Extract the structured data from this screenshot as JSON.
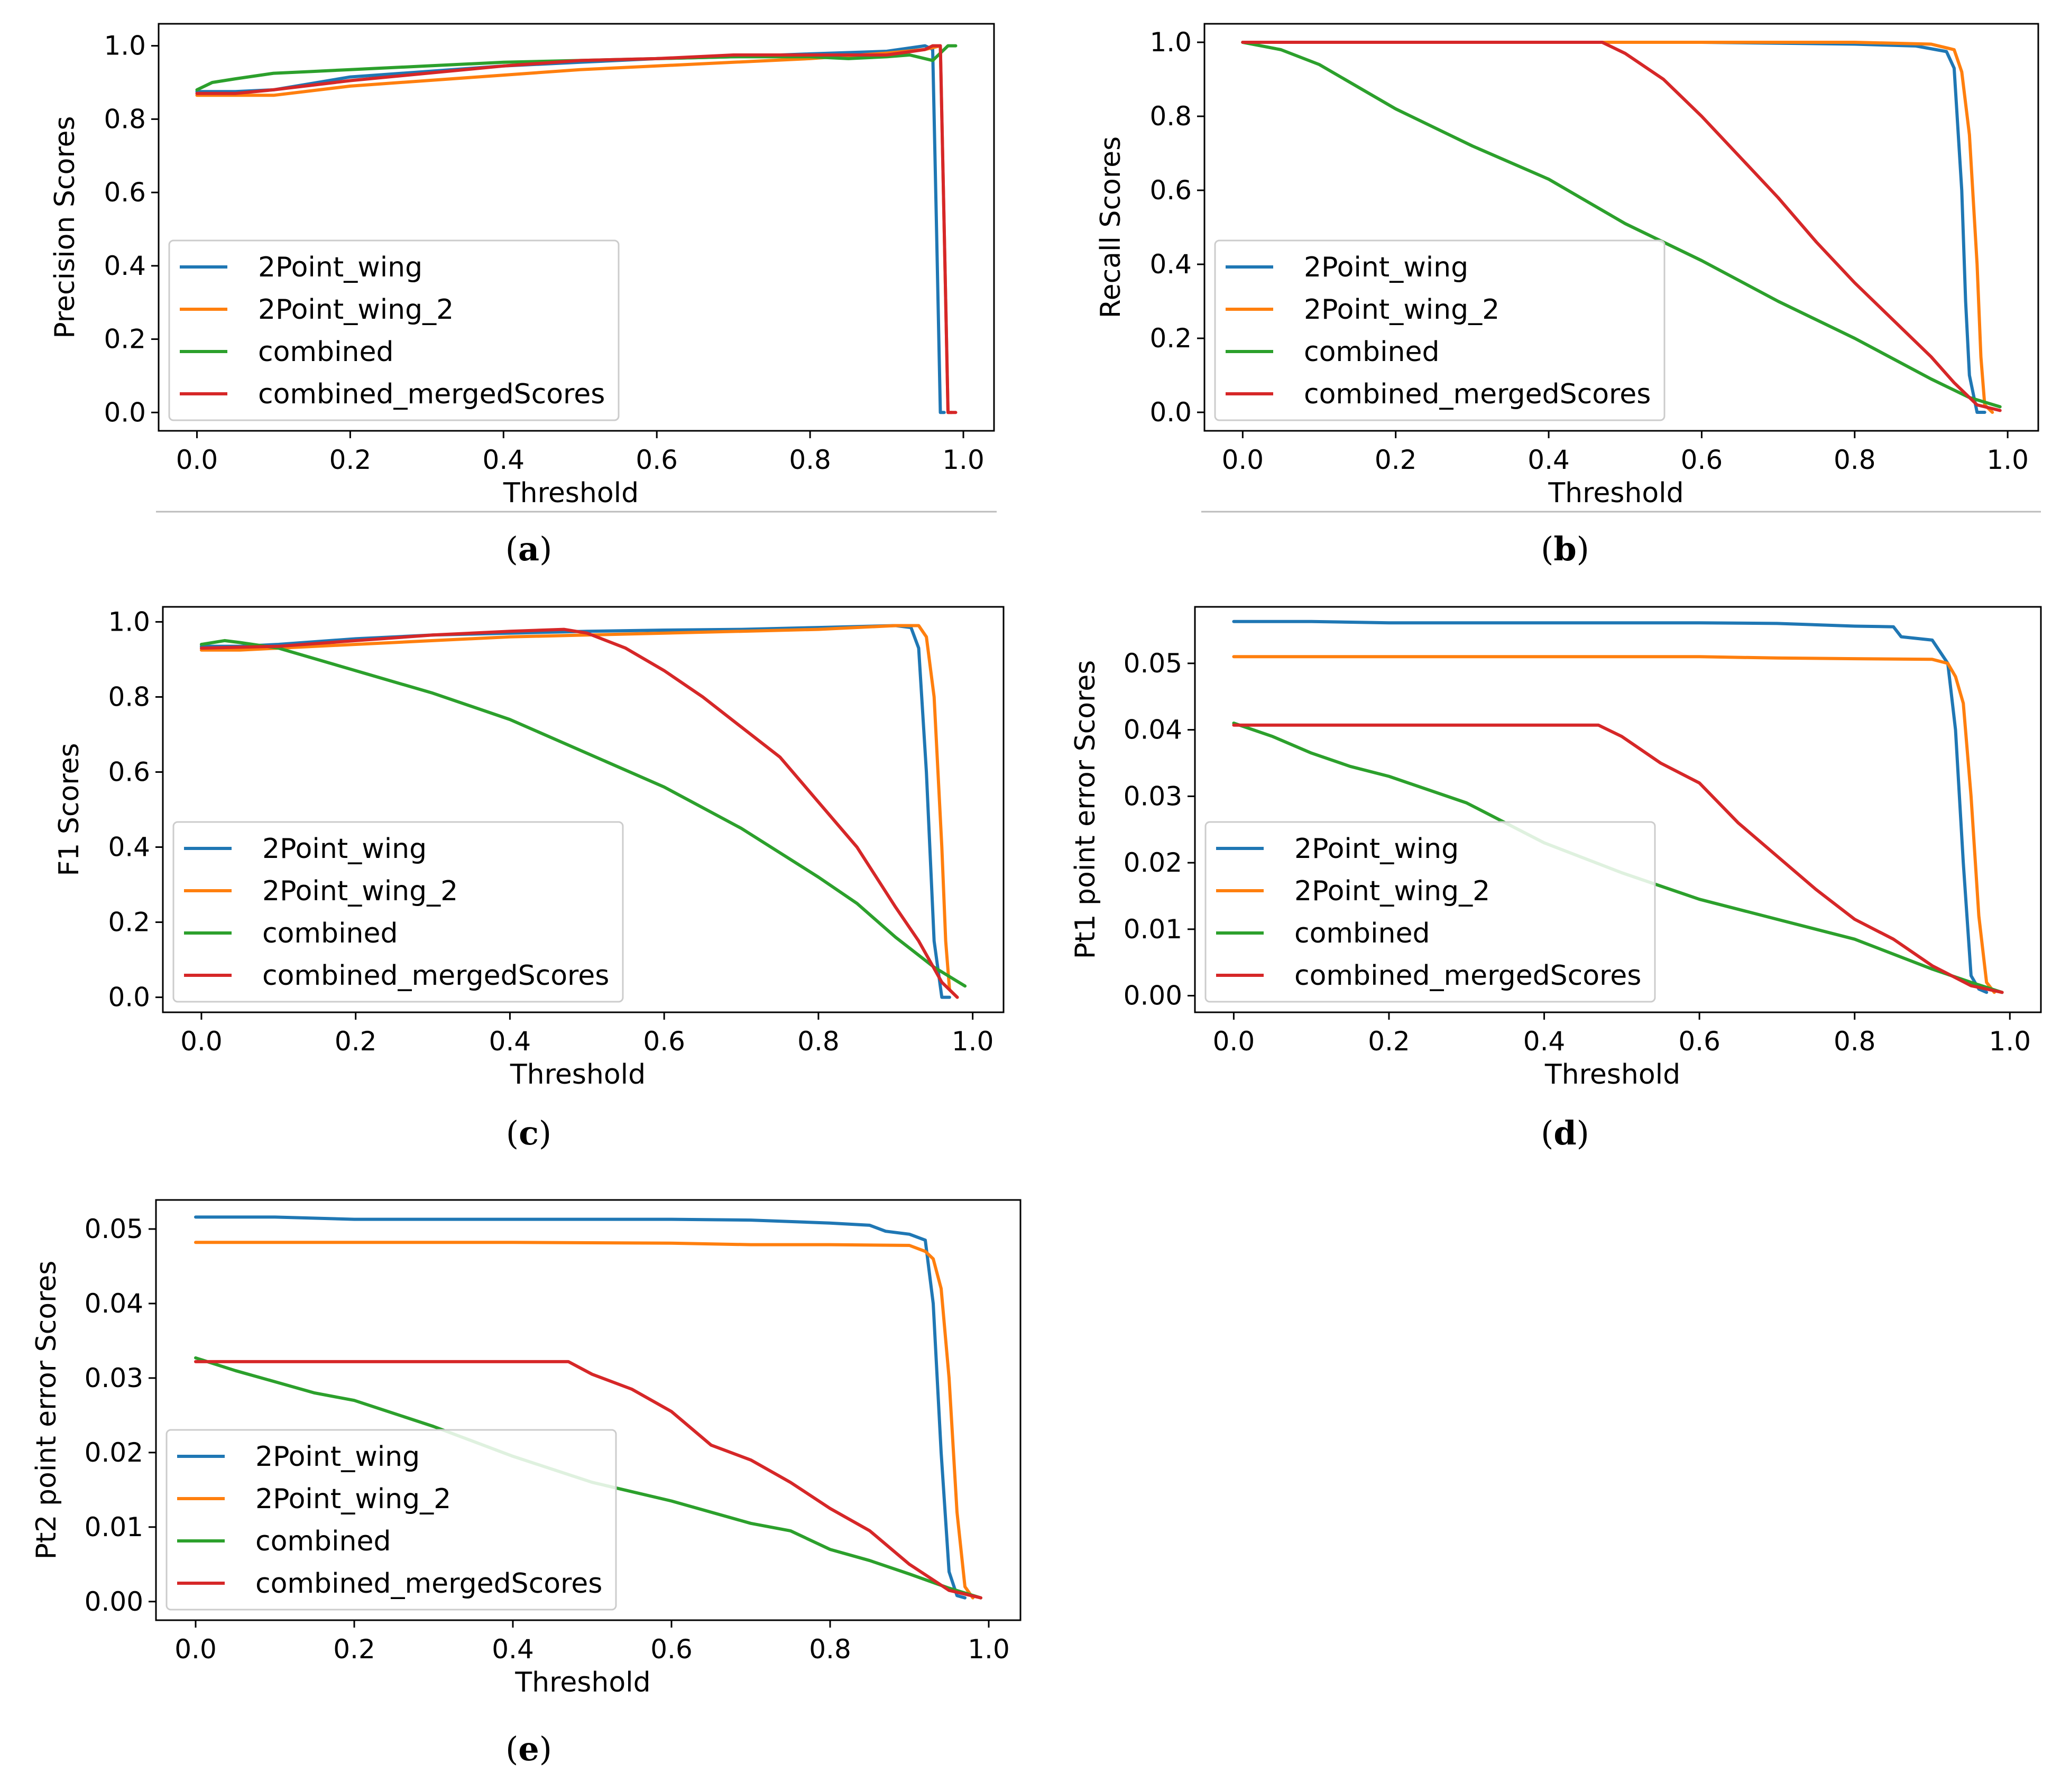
{
  "figure": {
    "colors": {
      "2Point_wing": "#1f77b4",
      "2Point_wing_2": "#ff7f0e",
      "combined": "#2ca02c",
      "combined_mergedScores": "#d62728"
    },
    "legend_labels": [
      "2Point_wing",
      "2Point_wing_2",
      "combined",
      "combined_mergedScores"
    ]
  },
  "chart_data": [
    {
      "id": "a",
      "caption": "(a)",
      "caption_letter": "a",
      "type": "line",
      "xlabel": "Threshold",
      "ylabel": "Precision Scores",
      "xlim": [
        -0.05,
        1.04
      ],
      "ylim": [
        -0.05,
        1.06
      ],
      "xticks": [
        0.0,
        0.2,
        0.4,
        0.6,
        0.8,
        1.0
      ],
      "xtick_labels": [
        "0.0",
        "0.2",
        "0.4",
        "0.6",
        "0.8",
        "1.0"
      ],
      "yticks": [
        0.0,
        0.2,
        0.4,
        0.6,
        0.8,
        1.0
      ],
      "ytick_labels": [
        "0.0",
        "0.2",
        "0.4",
        "0.6",
        "0.8",
        "1.0"
      ],
      "legend_position": "lower-left",
      "series": [
        {
          "name": "2Point_wing",
          "x": [
            0.0,
            0.05,
            0.1,
            0.2,
            0.3,
            0.4,
            0.5,
            0.6,
            0.7,
            0.8,
            0.9,
            0.95,
            0.96,
            0.965,
            0.97,
            0.975
          ],
          "y": [
            0.875,
            0.875,
            0.88,
            0.915,
            0.93,
            0.945,
            0.955,
            0.965,
            0.97,
            0.978,
            0.985,
            1.0,
            0.99,
            0.5,
            0.0,
            0.0
          ]
        },
        {
          "name": "2Point_wing_2",
          "x": [
            0.0,
            0.05,
            0.1,
            0.2,
            0.3,
            0.4,
            0.5,
            0.6,
            0.7,
            0.8,
            0.9,
            0.95,
            0.97,
            0.975,
            0.98,
            0.985
          ],
          "y": [
            0.865,
            0.865,
            0.865,
            0.89,
            0.905,
            0.92,
            0.935,
            0.945,
            0.955,
            0.965,
            0.98,
            0.99,
            1.0,
            0.5,
            0.0,
            0.0
          ]
        },
        {
          "name": "combined",
          "x": [
            0.0,
            0.02,
            0.05,
            0.1,
            0.15,
            0.2,
            0.3,
            0.4,
            0.5,
            0.6,
            0.7,
            0.8,
            0.85,
            0.9,
            0.93,
            0.96,
            0.97,
            0.98,
            0.99
          ],
          "y": [
            0.88,
            0.9,
            0.91,
            0.925,
            0.93,
            0.935,
            0.945,
            0.955,
            0.96,
            0.965,
            0.97,
            0.97,
            0.965,
            0.97,
            0.975,
            0.96,
            0.98,
            1.0,
            1.0
          ]
        },
        {
          "name": "combined_mergedScores",
          "x": [
            0.0,
            0.05,
            0.1,
            0.2,
            0.3,
            0.4,
            0.5,
            0.6,
            0.7,
            0.8,
            0.9,
            0.95,
            0.96,
            0.97,
            0.975,
            0.98,
            0.99
          ],
          "y": [
            0.87,
            0.87,
            0.88,
            0.905,
            0.925,
            0.945,
            0.96,
            0.965,
            0.975,
            0.975,
            0.975,
            0.99,
            1.0,
            1.0,
            0.5,
            0.0,
            0.0
          ]
        }
      ]
    },
    {
      "id": "b",
      "caption": "(b)",
      "caption_letter": "b",
      "type": "line",
      "xlabel": "Threshold",
      "ylabel": "Recall Scores",
      "xlim": [
        -0.05,
        1.04
      ],
      "ylim": [
        -0.05,
        1.05
      ],
      "xticks": [
        0.0,
        0.2,
        0.4,
        0.6,
        0.8,
        1.0
      ],
      "xtick_labels": [
        "0.0",
        "0.2",
        "0.4",
        "0.6",
        "0.8",
        "1.0"
      ],
      "yticks": [
        0.0,
        0.2,
        0.4,
        0.6,
        0.8,
        1.0
      ],
      "ytick_labels": [
        "0.0",
        "0.2",
        "0.4",
        "0.6",
        "0.8",
        "1.0"
      ],
      "legend_position": "lower-left",
      "series": [
        {
          "name": "2Point_wing",
          "x": [
            0.0,
            0.2,
            0.4,
            0.6,
            0.8,
            0.88,
            0.92,
            0.93,
            0.94,
            0.945,
            0.95,
            0.96,
            0.97
          ],
          "y": [
            1.0,
            1.0,
            1.0,
            1.0,
            0.995,
            0.99,
            0.975,
            0.93,
            0.6,
            0.3,
            0.1,
            0.0,
            0.0
          ]
        },
        {
          "name": "2Point_wing_2",
          "x": [
            0.0,
            0.2,
            0.4,
            0.6,
            0.8,
            0.9,
            0.93,
            0.94,
            0.95,
            0.96,
            0.965,
            0.97,
            0.98
          ],
          "y": [
            1.0,
            1.0,
            1.0,
            1.0,
            1.0,
            0.995,
            0.98,
            0.92,
            0.75,
            0.4,
            0.15,
            0.02,
            0.0
          ]
        },
        {
          "name": "combined",
          "x": [
            0.0,
            0.05,
            0.1,
            0.2,
            0.3,
            0.4,
            0.5,
            0.6,
            0.7,
            0.8,
            0.9,
            0.95,
            0.99
          ],
          "y": [
            1.0,
            0.98,
            0.94,
            0.82,
            0.72,
            0.63,
            0.51,
            0.41,
            0.3,
            0.2,
            0.09,
            0.04,
            0.015
          ]
        },
        {
          "name": "combined_mergedScores",
          "x": [
            0.0,
            0.2,
            0.4,
            0.47,
            0.5,
            0.55,
            0.6,
            0.65,
            0.7,
            0.75,
            0.8,
            0.85,
            0.9,
            0.93,
            0.96,
            0.99
          ],
          "y": [
            1.0,
            1.0,
            1.0,
            1.0,
            0.97,
            0.9,
            0.8,
            0.69,
            0.58,
            0.46,
            0.35,
            0.25,
            0.15,
            0.08,
            0.02,
            0.005
          ]
        }
      ]
    },
    {
      "id": "c",
      "caption": "(c)",
      "caption_letter": "c",
      "type": "line",
      "xlabel": "Threshold",
      "ylabel": "F1 Scores",
      "xlim": [
        -0.05,
        1.04
      ],
      "ylim": [
        -0.04,
        1.04
      ],
      "xticks": [
        0.0,
        0.2,
        0.4,
        0.6,
        0.8,
        1.0
      ],
      "xtick_labels": [
        "0.0",
        "0.2",
        "0.4",
        "0.6",
        "0.8",
        "1.0"
      ],
      "yticks": [
        0.0,
        0.2,
        0.4,
        0.6,
        0.8,
        1.0
      ],
      "ytick_labels": [
        "0.0",
        "0.2",
        "0.4",
        "0.6",
        "0.8",
        "1.0"
      ],
      "legend_position": "lower-left",
      "series": [
        {
          "name": "2Point_wing",
          "x": [
            0.0,
            0.05,
            0.1,
            0.2,
            0.3,
            0.4,
            0.5,
            0.6,
            0.7,
            0.8,
            0.9,
            0.92,
            0.93,
            0.94,
            0.95,
            0.96,
            0.97
          ],
          "y": [
            0.935,
            0.935,
            0.94,
            0.955,
            0.965,
            0.97,
            0.975,
            0.978,
            0.98,
            0.985,
            0.99,
            0.985,
            0.93,
            0.6,
            0.15,
            0.0,
            0.0
          ]
        },
        {
          "name": "2Point_wing_2",
          "x": [
            0.0,
            0.05,
            0.1,
            0.2,
            0.3,
            0.4,
            0.5,
            0.6,
            0.7,
            0.8,
            0.9,
            0.93,
            0.94,
            0.95,
            0.96,
            0.965,
            0.97,
            0.98
          ],
          "y": [
            0.925,
            0.925,
            0.93,
            0.94,
            0.95,
            0.96,
            0.965,
            0.97,
            0.975,
            0.98,
            0.99,
            0.99,
            0.96,
            0.8,
            0.4,
            0.15,
            0.02,
            0.0
          ]
        },
        {
          "name": "combined",
          "x": [
            0.0,
            0.03,
            0.05,
            0.1,
            0.2,
            0.3,
            0.4,
            0.5,
            0.6,
            0.7,
            0.8,
            0.85,
            0.9,
            0.95,
            0.99
          ],
          "y": [
            0.94,
            0.95,
            0.945,
            0.93,
            0.87,
            0.81,
            0.74,
            0.65,
            0.56,
            0.45,
            0.32,
            0.25,
            0.16,
            0.08,
            0.03
          ]
        },
        {
          "name": "combined_mergedScores",
          "x": [
            0.0,
            0.1,
            0.2,
            0.3,
            0.4,
            0.47,
            0.5,
            0.55,
            0.6,
            0.65,
            0.7,
            0.75,
            0.8,
            0.85,
            0.9,
            0.93,
            0.96,
            0.98
          ],
          "y": [
            0.93,
            0.935,
            0.95,
            0.965,
            0.975,
            0.98,
            0.97,
            0.93,
            0.87,
            0.8,
            0.72,
            0.64,
            0.52,
            0.4,
            0.24,
            0.15,
            0.04,
            0.0
          ]
        }
      ]
    },
    {
      "id": "d",
      "caption": "(d)",
      "caption_letter": "d",
      "type": "line",
      "xlabel": "Threshold",
      "ylabel": "Pt1 point error Scores",
      "xlim": [
        -0.05,
        1.04
      ],
      "ylim": [
        -0.0025,
        0.0585
      ],
      "xticks": [
        0.0,
        0.2,
        0.4,
        0.6,
        0.8,
        1.0
      ],
      "xtick_labels": [
        "0.0",
        "0.2",
        "0.4",
        "0.6",
        "0.8",
        "1.0"
      ],
      "yticks": [
        0.0,
        0.01,
        0.02,
        0.03,
        0.04,
        0.05
      ],
      "ytick_labels": [
        "0.00",
        "0.01",
        "0.02",
        "0.03",
        "0.04",
        "0.05"
      ],
      "legend_position": "lower-left",
      "series": [
        {
          "name": "2Point_wing",
          "x": [
            0.0,
            0.1,
            0.2,
            0.4,
            0.6,
            0.7,
            0.8,
            0.85,
            0.86,
            0.9,
            0.92,
            0.93,
            0.94,
            0.95,
            0.96,
            0.97
          ],
          "y": [
            0.0563,
            0.0563,
            0.0561,
            0.0561,
            0.0561,
            0.056,
            0.0556,
            0.0555,
            0.054,
            0.0535,
            0.05,
            0.04,
            0.02,
            0.003,
            0.001,
            0.0005
          ]
        },
        {
          "name": "2Point_wing_2",
          "x": [
            0.0,
            0.2,
            0.4,
            0.6,
            0.7,
            0.8,
            0.9,
            0.92,
            0.93,
            0.94,
            0.95,
            0.96,
            0.97,
            0.98
          ],
          "y": [
            0.051,
            0.051,
            0.051,
            0.051,
            0.0508,
            0.0507,
            0.0506,
            0.05,
            0.048,
            0.044,
            0.03,
            0.012,
            0.002,
            0.0005
          ]
        },
        {
          "name": "combined",
          "x": [
            0.0,
            0.05,
            0.1,
            0.15,
            0.2,
            0.3,
            0.4,
            0.5,
            0.6,
            0.7,
            0.8,
            0.9,
            0.95,
            0.99
          ],
          "y": [
            0.041,
            0.039,
            0.0365,
            0.0345,
            0.033,
            0.029,
            0.023,
            0.0185,
            0.0145,
            0.0115,
            0.0085,
            0.004,
            0.002,
            0.0005
          ]
        },
        {
          "name": "combined_mergedScores",
          "x": [
            0.0,
            0.2,
            0.4,
            0.47,
            0.5,
            0.55,
            0.6,
            0.65,
            0.7,
            0.75,
            0.8,
            0.85,
            0.9,
            0.95,
            0.99
          ],
          "y": [
            0.0407,
            0.0407,
            0.0407,
            0.0407,
            0.039,
            0.035,
            0.032,
            0.026,
            0.021,
            0.016,
            0.0115,
            0.0085,
            0.0045,
            0.0015,
            0.0005
          ]
        }
      ]
    },
    {
      "id": "e",
      "caption": "(e)",
      "caption_letter": "e",
      "type": "line",
      "xlabel": "Threshold",
      "ylabel": "Pt2 point error Scores",
      "xlim": [
        -0.05,
        1.04
      ],
      "ylim": [
        -0.0025,
        0.0539
      ],
      "xticks": [
        0.0,
        0.2,
        0.4,
        0.6,
        0.8,
        1.0
      ],
      "xtick_labels": [
        "0.0",
        "0.2",
        "0.4",
        "0.6",
        "0.8",
        "1.0"
      ],
      "yticks": [
        0.0,
        0.01,
        0.02,
        0.03,
        0.04,
        0.05
      ],
      "ytick_labels": [
        "0.00",
        "0.01",
        "0.02",
        "0.03",
        "0.04",
        "0.05"
      ],
      "legend_position": "lower-left",
      "series": [
        {
          "name": "2Point_wing",
          "x": [
            0.0,
            0.1,
            0.2,
            0.4,
            0.6,
            0.7,
            0.8,
            0.85,
            0.87,
            0.9,
            0.92,
            0.93,
            0.94,
            0.95,
            0.96,
            0.97
          ],
          "y": [
            0.0516,
            0.0516,
            0.0513,
            0.0513,
            0.0513,
            0.0512,
            0.0508,
            0.0505,
            0.0497,
            0.0493,
            0.0485,
            0.04,
            0.02,
            0.004,
            0.0008,
            0.0005
          ]
        },
        {
          "name": "2Point_wing_2",
          "x": [
            0.0,
            0.2,
            0.4,
            0.6,
            0.7,
            0.8,
            0.9,
            0.92,
            0.93,
            0.94,
            0.95,
            0.96,
            0.97,
            0.98
          ],
          "y": [
            0.0482,
            0.0482,
            0.0482,
            0.0481,
            0.0479,
            0.0479,
            0.0478,
            0.047,
            0.046,
            0.042,
            0.03,
            0.012,
            0.002,
            0.0005
          ]
        },
        {
          "name": "combined",
          "x": [
            0.0,
            0.05,
            0.1,
            0.15,
            0.2,
            0.3,
            0.4,
            0.5,
            0.6,
            0.7,
            0.75,
            0.8,
            0.85,
            0.9,
            0.95,
            0.99
          ],
          "y": [
            0.0327,
            0.031,
            0.0295,
            0.028,
            0.027,
            0.0235,
            0.0195,
            0.016,
            0.0135,
            0.0105,
            0.0095,
            0.007,
            0.0055,
            0.0037,
            0.0018,
            0.0005
          ]
        },
        {
          "name": "combined_mergedScores",
          "x": [
            0.0,
            0.2,
            0.4,
            0.47,
            0.5,
            0.55,
            0.6,
            0.65,
            0.7,
            0.75,
            0.8,
            0.85,
            0.9,
            0.95,
            0.99
          ],
          "y": [
            0.0322,
            0.0322,
            0.0322,
            0.0322,
            0.0305,
            0.0285,
            0.0255,
            0.021,
            0.019,
            0.016,
            0.0125,
            0.0095,
            0.005,
            0.0015,
            0.0005
          ]
        }
      ]
    }
  ]
}
